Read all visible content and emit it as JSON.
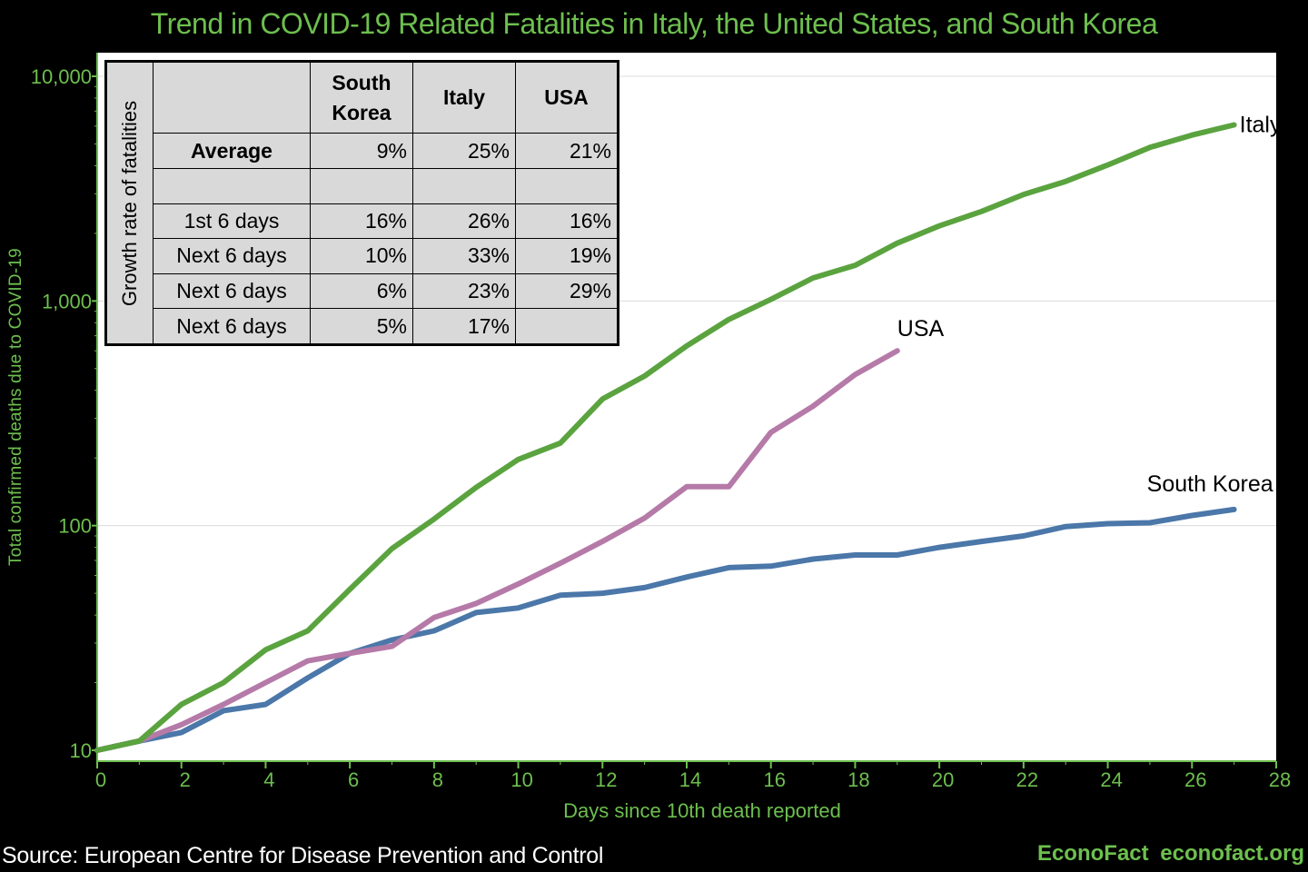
{
  "chart_data": {
    "type": "line",
    "title": "Trend in COVID-19 Related Fatalities in Italy, the United States, and South Korea",
    "xlabel": "Days since 10th death reported",
    "ylabel": "Total confirmed deaths due to COVID-19",
    "xlim": [
      0,
      28
    ],
    "ylim": [
      10,
      10000
    ],
    "yscale": "log",
    "x_ticks": [
      "0",
      "2",
      "4",
      "6",
      "8",
      "10",
      "12",
      "14",
      "16",
      "18",
      "20",
      "22",
      "24",
      "26",
      "28"
    ],
    "y_ticks": [
      {
        "value": 10,
        "label": "10"
      },
      {
        "value": 100,
        "label": "100"
      },
      {
        "value": 1000,
        "label": "1,000"
      },
      {
        "value": 10000,
        "label": "10,000"
      }
    ],
    "grid": "horizontal",
    "series": [
      {
        "name": "Italy",
        "color": "#5aa33f",
        "x": [
          0,
          1,
          2,
          3,
          4,
          5,
          6,
          7,
          8,
          9,
          10,
          11,
          12,
          13,
          14,
          15,
          16,
          17,
          18,
          19,
          20,
          21,
          22,
          23,
          24,
          25,
          26,
          27
        ],
        "y": [
          10,
          11,
          16,
          20,
          28,
          34,
          52,
          79,
          107,
          148,
          197,
          233,
          366,
          463,
          631,
          827,
          1016,
          1266,
          1441,
          1809,
          2158,
          2503,
          2978,
          3405,
          4032,
          4825,
          5476,
          6077
        ]
      },
      {
        "name": "USA",
        "color": "#b57aa8",
        "x": [
          0,
          1,
          2,
          3,
          4,
          5,
          6,
          7,
          8,
          9,
          10,
          11,
          12,
          13,
          14,
          15,
          16,
          17,
          18,
          19
        ],
        "y": [
          10,
          11,
          13,
          16,
          20,
          25,
          27,
          29,
          39,
          45,
          55,
          68,
          85,
          108,
          149,
          149,
          260,
          340,
          470,
          600
        ]
      },
      {
        "name": "South Korea",
        "color": "#4b77a9",
        "x": [
          0,
          1,
          2,
          3,
          4,
          5,
          6,
          7,
          8,
          9,
          10,
          11,
          12,
          13,
          14,
          15,
          16,
          17,
          18,
          19,
          20,
          21,
          22,
          23,
          24,
          25,
          26,
          27
        ],
        "y": [
          10,
          11,
          12,
          15,
          16,
          21,
          27,
          31,
          34,
          41,
          43,
          49,
          50,
          53,
          59,
          65,
          66,
          71,
          74,
          74,
          80,
          85,
          90,
          99,
          102,
          103,
          111,
          118
        ]
      }
    ],
    "series_labels": [
      "Italy",
      "USA",
      "South Korea"
    ],
    "source": "Source: European Centre for Disease Prevention and Control",
    "brand": "EconoFact  econofact.org"
  },
  "table": {
    "vertical_label": "Growth rate of fatalities",
    "headers": [
      "South Korea",
      "Italy",
      "USA"
    ],
    "rows": [
      {
        "label": "Average",
        "values": [
          "9%",
          "25%",
          "21%"
        ]
      },
      {
        "label": "",
        "values": [
          "",
          "",
          ""
        ]
      },
      {
        "label": "1st 6 days",
        "values": [
          "16%",
          "26%",
          "16%"
        ]
      },
      {
        "label": "Next 6 days",
        "values": [
          "10%",
          "33%",
          "19%"
        ]
      },
      {
        "label": "Next 6 days",
        "values": [
          "6%",
          "23%",
          "29%"
        ]
      },
      {
        "label": "Next 6 days",
        "values": [
          "5%",
          "17%",
          ""
        ]
      }
    ]
  }
}
